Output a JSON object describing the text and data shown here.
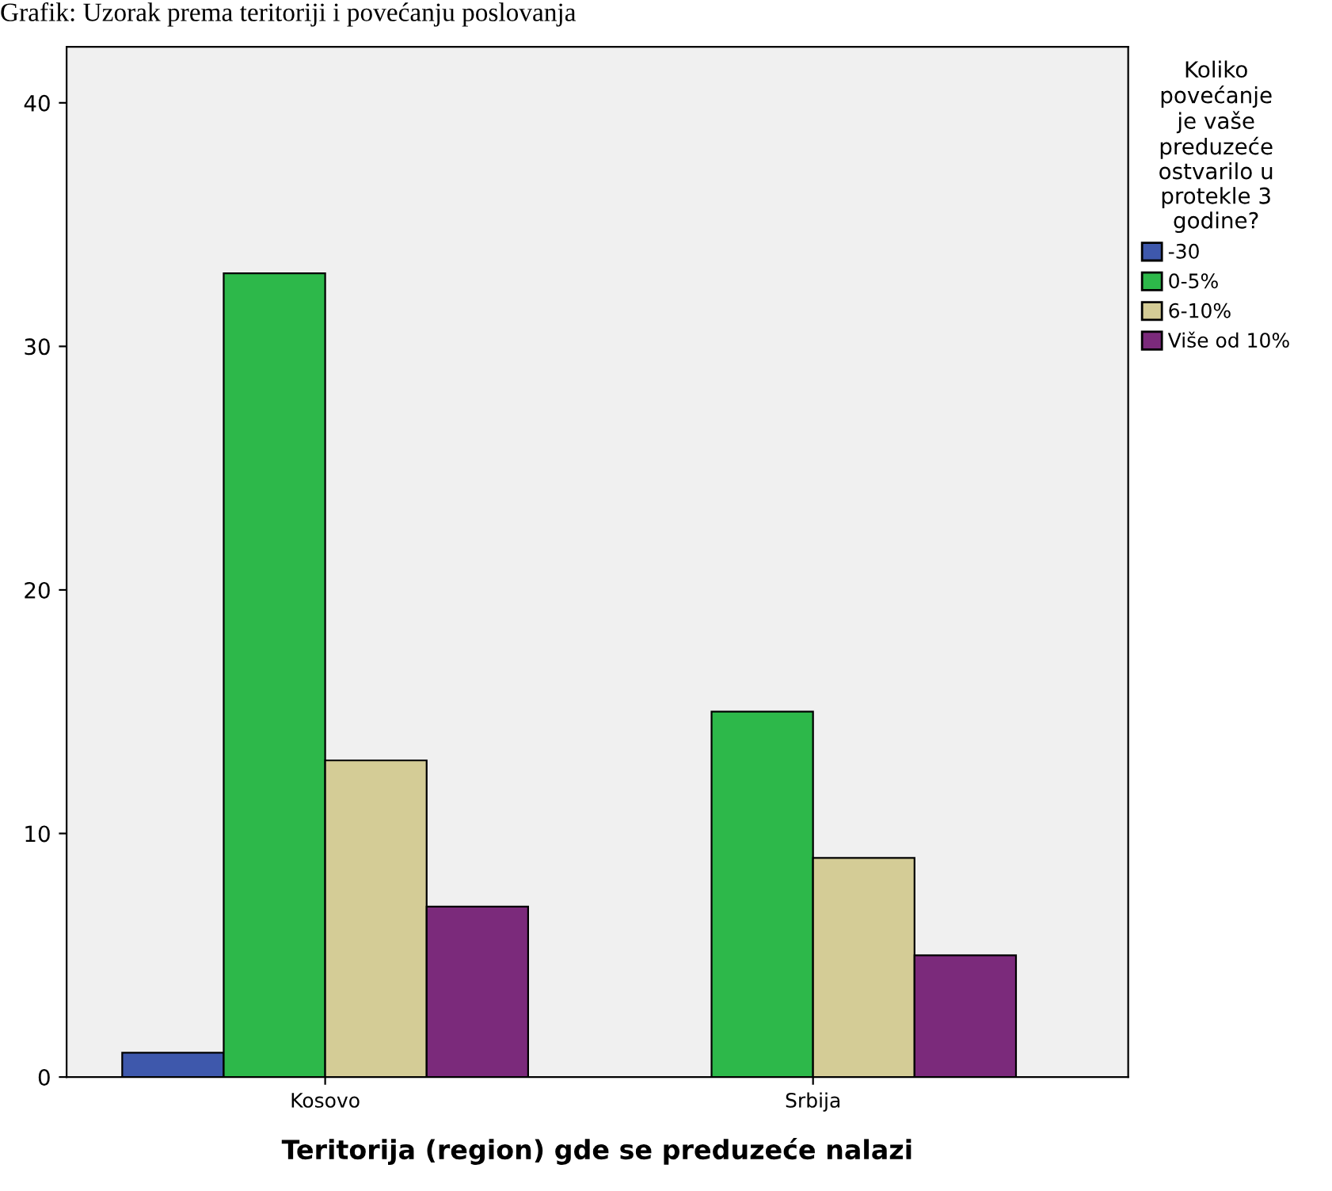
{
  "chart_data": {
    "type": "bar",
    "title": "Grafik: Uzorak prema teritoriji i povećanju poslovanja",
    "xlabel": "Teritorija (region) gde se preduzeće nalazi",
    "legend_title": "Koliko\npovećanje\nje vaše\npreduzeće\nostvarilo u\nprotekle 3\ngodine?",
    "categories": [
      "Kosovo",
      "Srbija"
    ],
    "series": [
      {
        "name": "-30",
        "color": "#3e58ac",
        "values": [
          1,
          null
        ]
      },
      {
        "name": "0-5%",
        "color": "#2db84a",
        "values": [
          33,
          15
        ]
      },
      {
        "name": "6-10%",
        "color": "#d4cc96",
        "values": [
          13,
          9
        ]
      },
      {
        "name": "Više od 10%",
        "color": "#7b2a7b",
        "values": [
          7,
          5
        ]
      }
    ],
    "ylim": [
      0,
      42.3
    ],
    "yticks": [
      0,
      10,
      20,
      30,
      40
    ],
    "grid": false,
    "legend": "right"
  }
}
